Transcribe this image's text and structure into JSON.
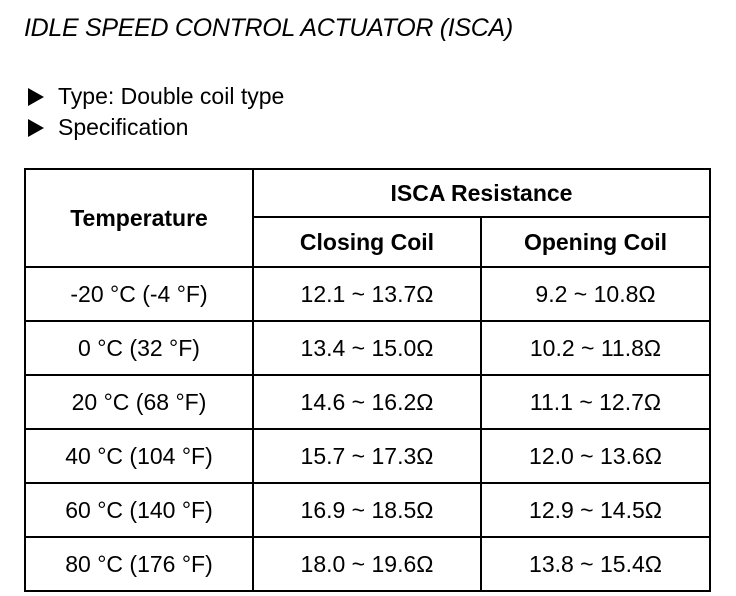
{
  "header": {
    "title": "IDLE SPEED CONTROL ACTUATOR (ISCA)"
  },
  "bullets": [
    "Type: Double coil type",
    "Specification"
  ],
  "table": {
    "header": {
      "temperature": "Temperature",
      "group": "ISCA Resistance",
      "columns": [
        "Closing Coil",
        "Opening Coil"
      ]
    },
    "rows": [
      [
        "-20 °C (-4 °F)",
        "12.1 ~ 13.7Ω",
        "9.2 ~ 10.8Ω"
      ],
      [
        "0 °C (32 °F)",
        "13.4 ~ 15.0Ω",
        "10.2 ~ 11.8Ω"
      ],
      [
        "20 °C (68 °F)",
        "14.6 ~ 16.2Ω",
        "11.1 ~ 12.7Ω"
      ],
      [
        "40 °C (104 °F)",
        "15.7 ~ 17.3Ω",
        "12.0 ~ 13.6Ω"
      ],
      [
        "60 °C (140 °F)",
        "16.9 ~ 18.5Ω",
        "12.9 ~ 14.5Ω"
      ],
      [
        "80 °C (176 °F)",
        "18.0 ~ 19.6Ω",
        "13.8 ~ 15.4Ω"
      ]
    ]
  }
}
